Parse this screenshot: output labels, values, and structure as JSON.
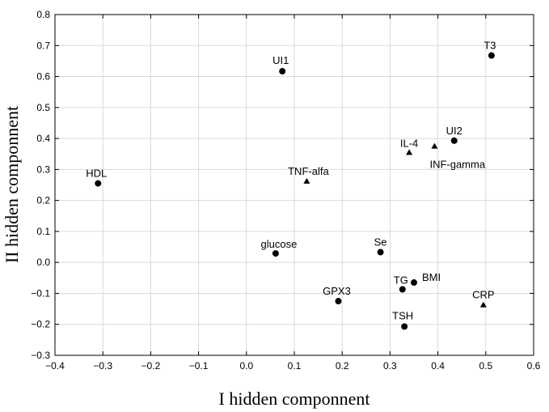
{
  "chart_data": {
    "type": "scatter",
    "title": "",
    "xlabel": "I hidden componnent",
    "ylabel": "II hidden componnent",
    "xlim": [
      -0.4,
      0.6
    ],
    "ylim": [
      -0.3,
      0.8
    ],
    "xticks": [
      -0.4,
      -0.3,
      -0.2,
      -0.1,
      0.0,
      0.1,
      0.2,
      0.3,
      0.4,
      0.5,
      0.6
    ],
    "yticks": [
      -0.3,
      -0.2,
      -0.1,
      0.0,
      0.1,
      0.2,
      0.3,
      0.4,
      0.5,
      0.6,
      0.7,
      0.8
    ],
    "xtick_labels": [
      "−0.4",
      "−0.3",
      "−0.2",
      "−0.1",
      "0.0",
      "0.1",
      "0.2",
      "0.3",
      "0.4",
      "0.5",
      "0.6"
    ],
    "ytick_labels": [
      "−0.3",
      "−0.2",
      "−0.1",
      "0.0",
      "0.1",
      "0.2",
      "0.3",
      "0.4",
      "0.5",
      "0.6",
      "0.7",
      "0.8"
    ],
    "grid": true,
    "points": [
      {
        "label": "T3",
        "x": 0.512,
        "y": 0.668,
        "marker": "circle"
      },
      {
        "label": "UI1",
        "x": 0.075,
        "y": 0.617,
        "marker": "circle"
      },
      {
        "label": "UI2",
        "x": 0.434,
        "y": 0.393,
        "marker": "circle"
      },
      {
        "label": "IL-4",
        "x": 0.34,
        "y": 0.355,
        "marker": "triangle"
      },
      {
        "label": "INF-gamma",
        "x": 0.393,
        "y": 0.375,
        "marker": "triangle"
      },
      {
        "label": "HDL",
        "x": -0.31,
        "y": 0.255,
        "marker": "circle"
      },
      {
        "label": "TNF-alfa",
        "x": 0.126,
        "y": 0.262,
        "marker": "triangle"
      },
      {
        "label": "glucose",
        "x": 0.061,
        "y": 0.029,
        "marker": "circle"
      },
      {
        "label": "Se",
        "x": 0.28,
        "y": 0.033,
        "marker": "circle"
      },
      {
        "label": "BMI",
        "x": 0.35,
        "y": -0.065,
        "marker": "circle"
      },
      {
        "label": "TG",
        "x": 0.326,
        "y": -0.087,
        "marker": "circle"
      },
      {
        "label": "GPX3",
        "x": 0.192,
        "y": -0.125,
        "marker": "circle"
      },
      {
        "label": "CRP",
        "x": 0.495,
        "y": -0.137,
        "marker": "triangle"
      },
      {
        "label": "TSH",
        "x": 0.33,
        "y": -0.207,
        "marker": "circle"
      }
    ]
  }
}
